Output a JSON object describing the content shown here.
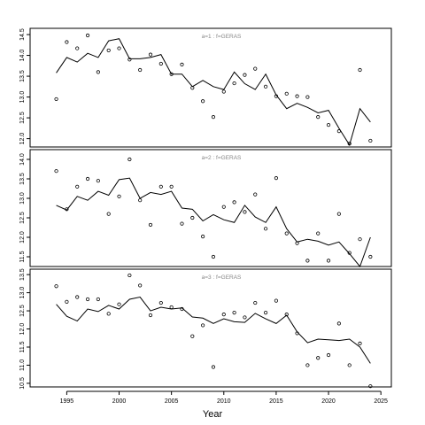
{
  "chart_data": {
    "type": "line",
    "xlabel": "Year",
    "xlim": [
      1991.5,
      2026
    ],
    "xticks": [
      1995,
      2000,
      2005,
      2010,
      2015,
      2020,
      2025
    ],
    "x": [
      1994,
      1995,
      1996,
      1997,
      1998,
      1999,
      2000,
      2001,
      2002,
      2003,
      2004,
      2005,
      2006,
      2007,
      2008,
      2009,
      2010,
      2011,
      2012,
      2013,
      2014,
      2015,
      2016,
      2017,
      2018,
      2019,
      2020,
      2021,
      2022,
      2023,
      2024
    ],
    "panels": [
      {
        "label": "a=1  :  f=GERAS",
        "ylim": [
          11.8,
          14.65
        ],
        "yticks": [
          12.0,
          12.5,
          13.0,
          13.5,
          14.0,
          14.5
        ],
        "series": [
          {
            "kind": "line",
            "values": [
              13.58,
              13.95,
              13.84,
              14.05,
              13.95,
              14.35,
              14.4,
              13.92,
              13.92,
              13.95,
              14.02,
              13.55,
              13.55,
              13.25,
              13.4,
              13.25,
              13.18,
              13.6,
              13.32,
              13.18,
              13.55,
              13.05,
              12.72,
              12.85,
              12.75,
              12.62,
              12.68,
              12.25,
              11.85,
              12.72,
              12.4
            ]
          },
          {
            "kind": "points",
            "values": [
              12.95,
              14.32,
              14.17,
              14.48,
              13.6,
              14.12,
              14.17,
              13.9,
              13.65,
              14.02,
              13.8,
              13.55,
              13.78,
              13.22,
              12.9,
              12.52,
              13.13,
              13.33,
              13.53,
              13.68,
              13.25,
              13.02,
              13.08,
              13.02,
              13.0,
              12.52,
              12.33,
              12.18,
              11.88,
              13.65,
              11.95
            ]
          }
        ]
      },
      {
        "label": "a=2  :  f=GERAS",
        "ylim": [
          11.25,
          14.25
        ],
        "yticks": [
          11.5,
          12.0,
          12.5,
          13.0,
          13.5,
          14.0
        ],
        "series": [
          {
            "kind": "line",
            "values": [
              12.82,
              12.7,
              13.05,
              12.95,
              13.18,
              13.08,
              13.48,
              13.52,
              13.0,
              13.15,
              13.1,
              13.18,
              12.75,
              12.72,
              12.42,
              12.58,
              12.45,
              12.38,
              12.82,
              12.52,
              12.38,
              12.78,
              12.22,
              11.88,
              11.95,
              11.9,
              11.8,
              11.88,
              11.58,
              11.25,
              12.0
            ]
          },
          {
            "kind": "points",
            "values": [
              13.7,
              12.72,
              13.3,
              13.5,
              13.45,
              12.6,
              13.05,
              14.0,
              12.95,
              12.32,
              13.3,
              13.3,
              12.35,
              12.5,
              12.02,
              11.5,
              12.78,
              12.9,
              12.65,
              13.1,
              12.22,
              13.52,
              12.1,
              11.85,
              11.4,
              12.1,
              11.4,
              12.6,
              11.6,
              11.95,
              11.5
            ]
          }
        ]
      },
      {
        "label": "a=3  :  f=GERAS",
        "ylim": [
          10.4,
          13.65
        ],
        "yticks": [
          10.5,
          11.0,
          11.5,
          12.0,
          12.5,
          13.0,
          13.5
        ],
        "series": [
          {
            "kind": "line",
            "values": [
              12.68,
              12.35,
              12.22,
              12.55,
              12.48,
              12.65,
              12.55,
              12.82,
              12.88,
              12.5,
              12.6,
              12.55,
              12.58,
              12.33,
              12.3,
              12.15,
              12.28,
              12.2,
              12.18,
              12.43,
              12.28,
              12.15,
              12.38,
              11.92,
              11.62,
              11.72,
              11.7,
              11.68,
              11.72,
              11.5,
              11.05
            ]
          },
          {
            "kind": "points",
            "values": [
              13.18,
              12.75,
              12.88,
              12.82,
              12.82,
              12.42,
              12.68,
              13.48,
              13.2,
              12.38,
              12.72,
              12.6,
              12.55,
              11.8,
              12.1,
              10.95,
              12.4,
              12.45,
              12.32,
              12.72,
              12.45,
              12.78,
              12.4,
              11.88,
              11.0,
              11.2,
              11.28,
              12.15,
              11.0,
              11.6,
              10.42
            ]
          }
        ]
      }
    ]
  }
}
